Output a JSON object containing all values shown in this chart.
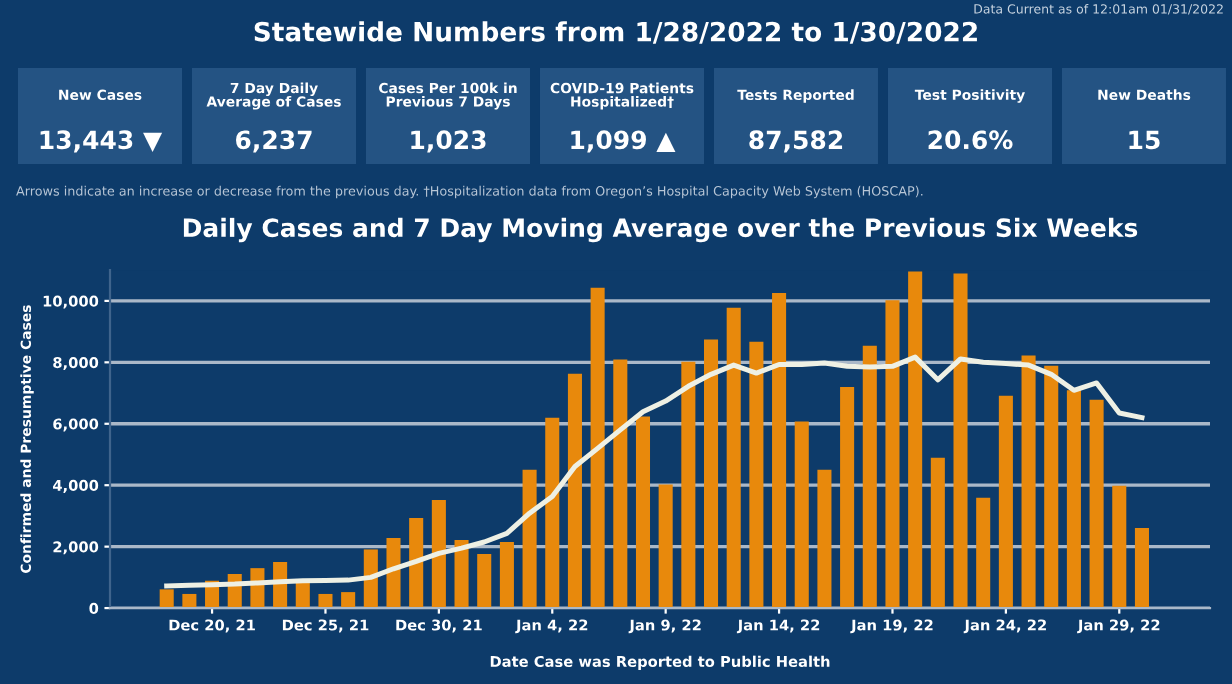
{
  "chart_data": [
    {
      "type": "other",
      "title": "Statewide Numbers from 1/28/2022 to 1/30/2022",
      "annotations": [
        "Data Current as of 12:01am 01/31/2022",
        "New Cases",
        "13,443 ▼",
        "7 Day Daily\nAverage of Cases",
        "6,237",
        "Cases Per 100k in\nPrevious 7 Days",
        "1,023",
        "COVID-19 Patients\nHospitalized†",
        "1,099 ▲",
        "Tests Reported",
        "87,582",
        "Test Positivity",
        "20.6%",
        "New Deaths",
        "15",
        "Arrows indicate an increase or decrease from the previous day. †Hospitalization data from Oregon’s Hospital Capacity Web System (HOSCAP)."
      ]
    },
    {
      "type": "bar",
      "title": "Daily Cases and 7 Day Moving Average over the Previous Six Weeks",
      "xlabel": "Date Case was Reported to Public Health",
      "ylabel": "Confirmed and Presumptive Cases",
      "x": [
        "2021-12-18",
        "2021-12-19",
        "2021-12-20",
        "2021-12-21",
        "2021-12-22",
        "2021-12-23",
        "2021-12-24",
        "2021-12-25",
        "2021-12-26",
        "2021-12-27",
        "2021-12-28",
        "2021-12-29",
        "2021-12-30",
        "2021-12-31",
        "2022-01-01",
        "2022-01-02",
        "2022-01-03",
        "2022-01-04",
        "2022-01-05",
        "2022-01-06",
        "2022-01-07",
        "2022-01-08",
        "2022-01-09",
        "2022-01-10",
        "2022-01-11",
        "2022-01-12",
        "2022-01-13",
        "2022-01-14",
        "2022-01-15",
        "2022-01-16",
        "2022-01-17",
        "2022-01-18",
        "2022-01-19",
        "2022-01-20",
        "2022-01-21",
        "2022-01-22",
        "2022-01-23",
        "2022-01-24",
        "2022-01-25",
        "2022-01-26",
        "2022-01-27",
        "2022-01-28",
        "2022-01-29",
        "2022-01-30"
      ],
      "series": [
        {
          "type": "bar",
          "color": "#e8890c",
          "values": [
            610,
            460,
            890,
            1110,
            1300,
            1500,
            890,
            460,
            520,
            1910,
            2280,
            2930,
            3520,
            2220,
            1760,
            2150,
            4500,
            6200,
            7630,
            10430,
            8090,
            6240,
            4020,
            8020,
            8740,
            9780,
            8670,
            10260,
            6070,
            4500,
            7200,
            8540,
            10020,
            10960,
            4890,
            10890,
            3590,
            6910,
            8220,
            7890,
            7090,
            6780,
            3980,
            2610
          ]
        },
        {
          "type": "line",
          "color": "#eef0e4",
          "values": [
            720,
            740,
            760,
            780,
            820,
            860,
            890,
            900,
            910,
            1000,
            1280,
            1520,
            1780,
            1950,
            2150,
            2430,
            3090,
            3630,
            4610,
            5200,
            5800,
            6390,
            6740,
            7220,
            7610,
            7910,
            7650,
            7930,
            7930,
            7980,
            7870,
            7850,
            7870,
            8170,
            7430,
            8110,
            8000,
            7960,
            7910,
            7610,
            7090,
            7330,
            6350,
            6200
          ]
        }
      ],
      "xlim": [
        "2021-12-15T12:00",
        "2022-02-02"
      ],
      "xticks": [
        {
          "value": "2021-12-20",
          "label": "Dec 20, 21"
        },
        {
          "value": "2021-12-25",
          "label": "Dec 25, 21"
        },
        {
          "value": "2021-12-30",
          "label": "Dec 30, 21"
        },
        {
          "value": "2022-01-04",
          "label": "Jan 4, 22"
        },
        {
          "value": "2022-01-09",
          "label": "Jan 9, 22"
        },
        {
          "value": "2022-01-14",
          "label": "Jan 14, 22"
        },
        {
          "value": "2022-01-19",
          "label": "Jan 19, 22"
        },
        {
          "value": "2022-01-24",
          "label": "Jan 24, 22"
        },
        {
          "value": "2022-01-29",
          "label": "Jan 29, 22"
        }
      ],
      "ylim": [
        0,
        11000
      ],
      "yticks": [
        {
          "value": 0,
          "label": "0"
        },
        {
          "value": 2000,
          "label": "2,000"
        },
        {
          "value": 4000,
          "label": "4,000"
        },
        {
          "value": 6000,
          "label": "6,000"
        },
        {
          "value": 8000,
          "label": "8,000"
        },
        {
          "value": 10000,
          "label": "10,000"
        }
      ],
      "grid": "y",
      "legend": false
    }
  ]
}
